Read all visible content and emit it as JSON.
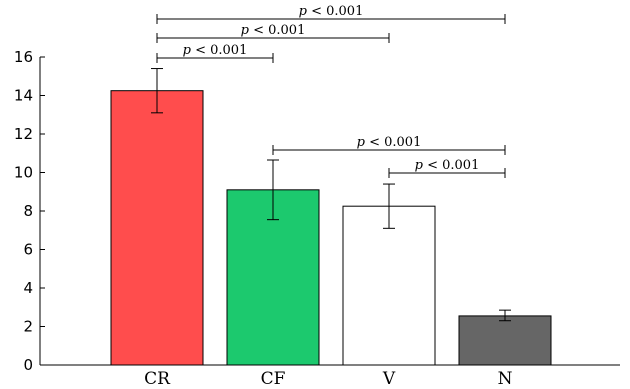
{
  "chart_data": {
    "type": "bar",
    "title": "",
    "xlabel": "",
    "ylabel": "",
    "categories": [
      "CR",
      "CF",
      "V",
      "N"
    ],
    "values": [
      14.25,
      9.1,
      8.25,
      2.55
    ],
    "errors": [
      [
        13.1,
        15.4
      ],
      [
        7.55,
        10.65
      ],
      [
        7.1,
        9.4
      ],
      [
        2.3,
        2.85
      ]
    ],
    "colors": [
      "#ff4d4d",
      "#1cc96e",
      "#ffffff",
      "#666666"
    ],
    "ylim": [
      0,
      16
    ],
    "yticks": [
      0,
      2,
      4,
      6,
      8,
      10,
      12,
      14,
      16
    ],
    "significance": [
      {
        "from": "CR",
        "to": "N",
        "label_p": "p",
        "label_rest": " < 0.001"
      },
      {
        "from": "CR",
        "to": "V",
        "label_p": "p",
        "label_rest": " < 0.001"
      },
      {
        "from": "CR",
        "to": "CF",
        "label_p": "p",
        "label_rest": " < 0.001"
      },
      {
        "from": "CF",
        "to": "N",
        "label_p": "p",
        "label_rest": " < 0.001"
      },
      {
        "from": "V",
        "to": "N",
        "label_p": "p",
        "label_rest": " < 0.001"
      }
    ]
  }
}
